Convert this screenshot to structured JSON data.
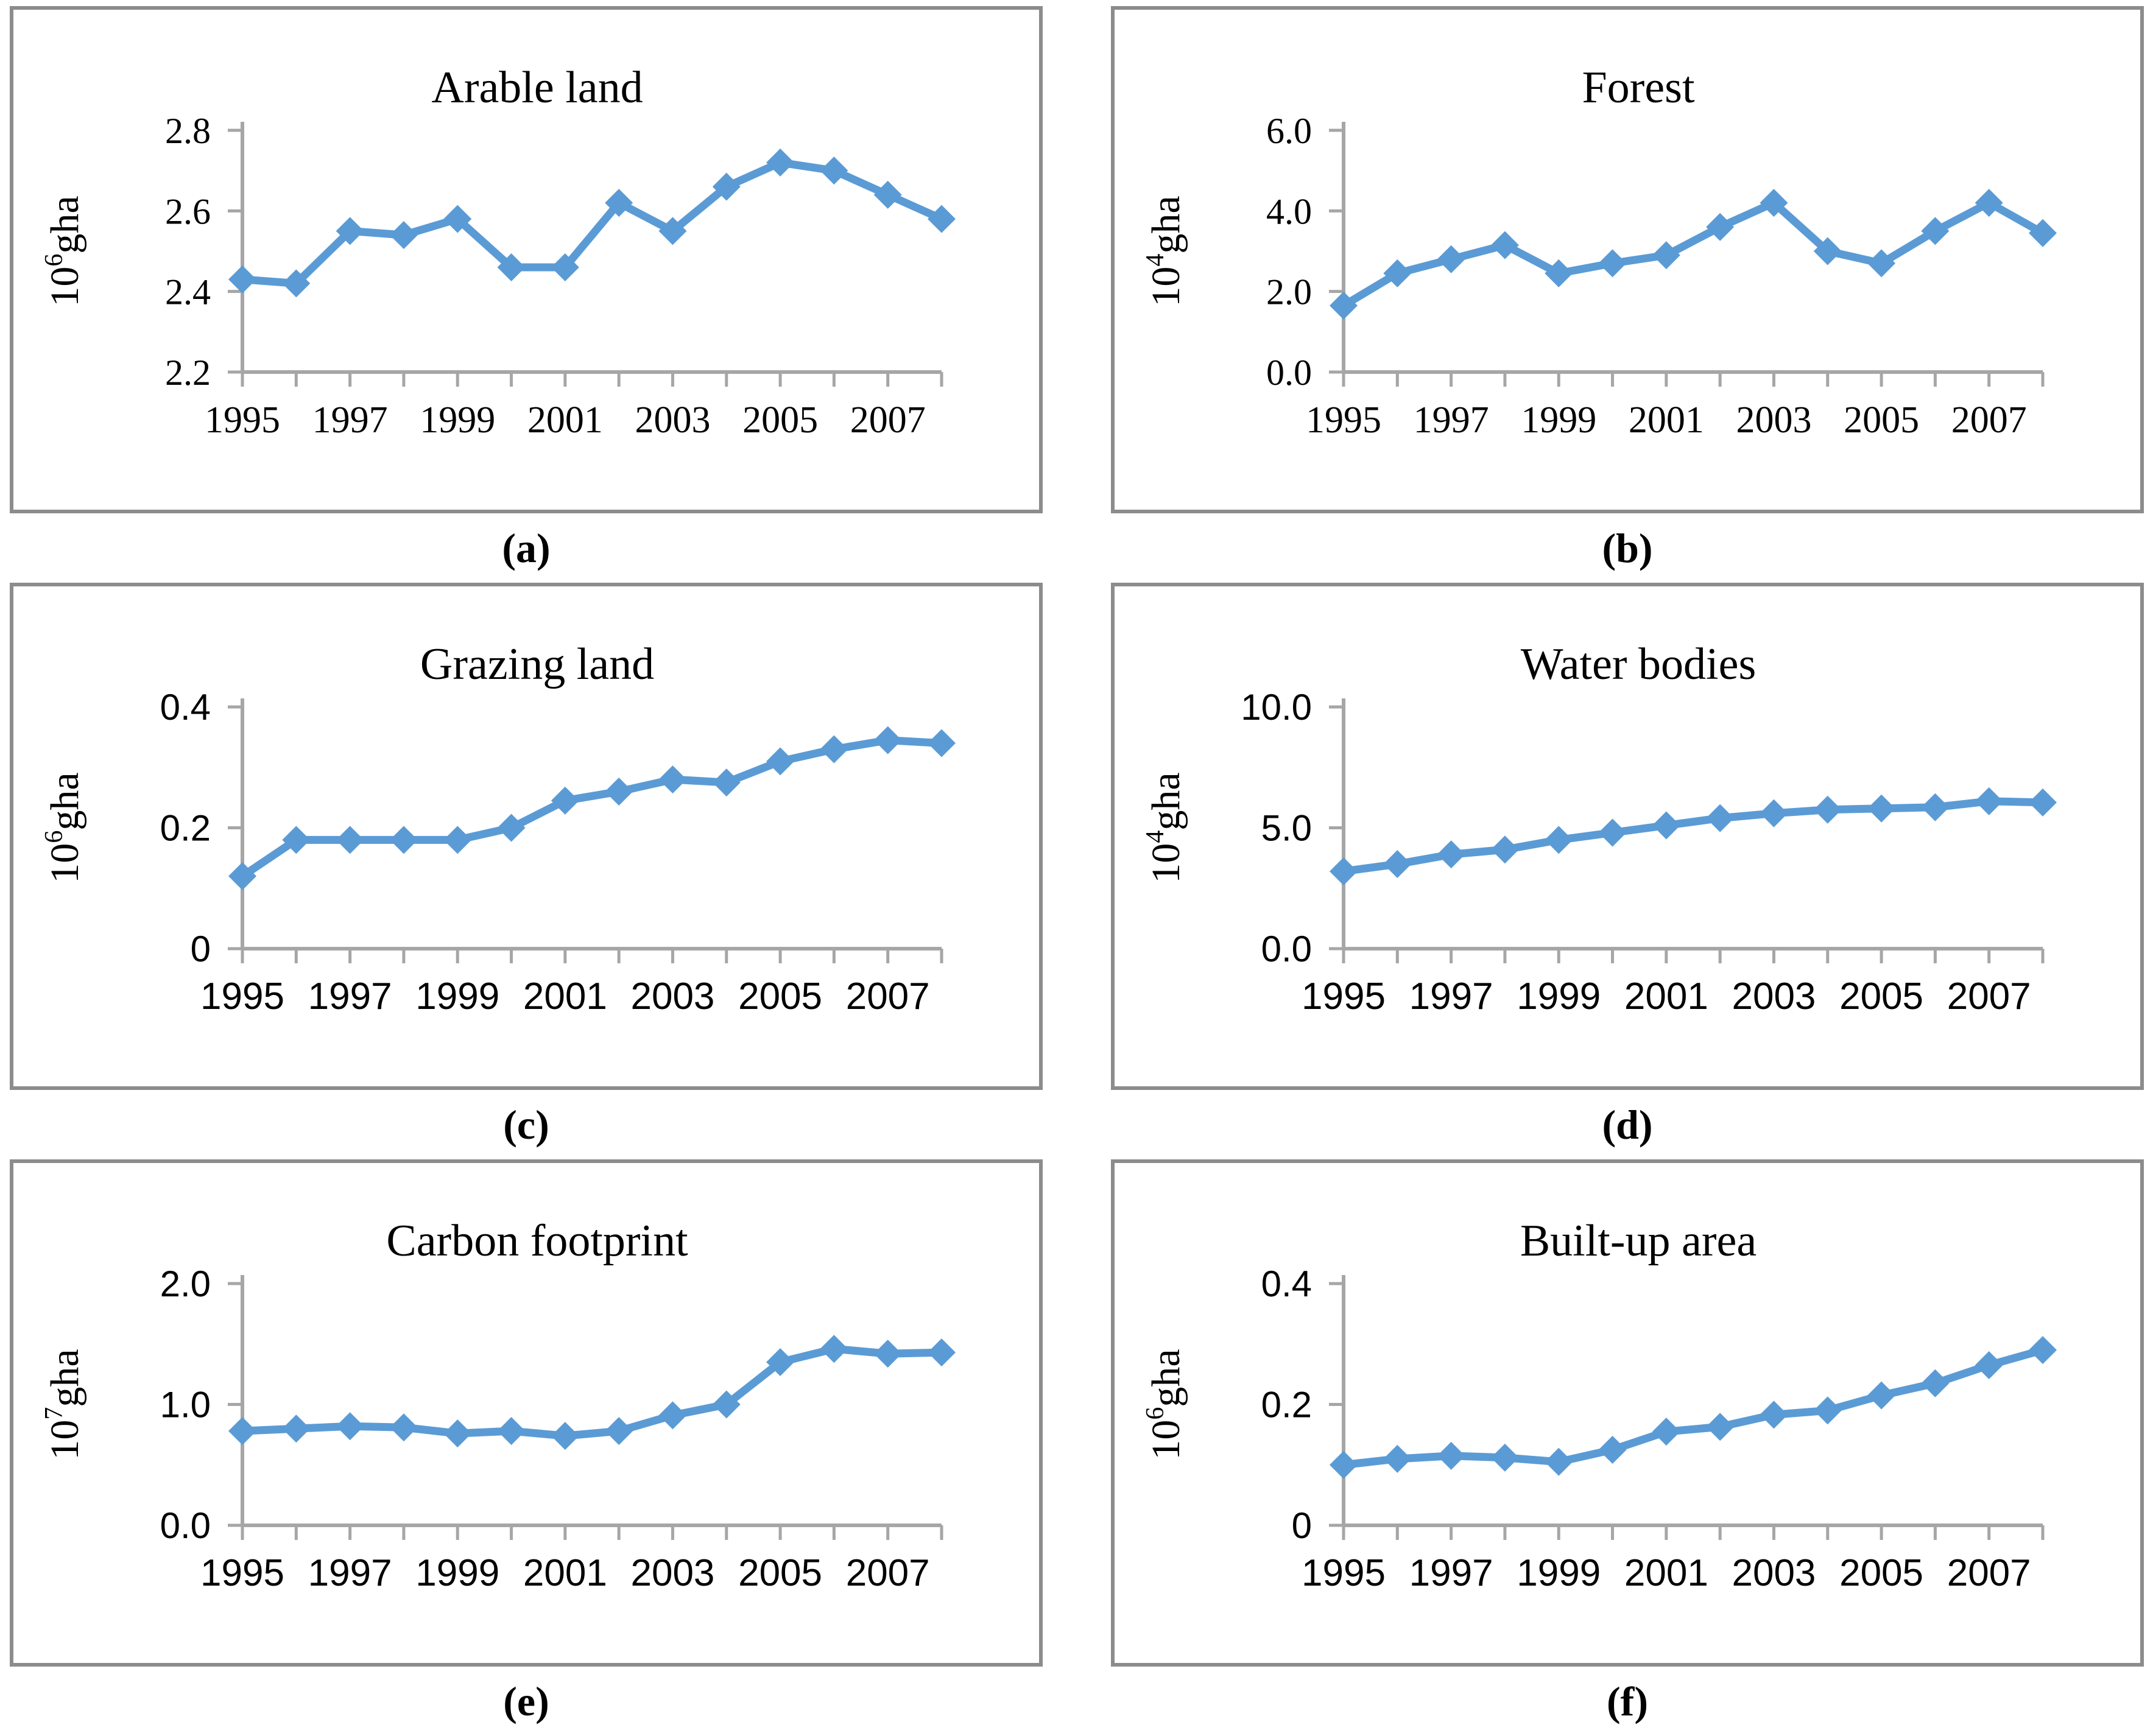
{
  "figure": {
    "line_color": "#5B9BD5",
    "axis_color": "#A6A6A6",
    "border_color": "#8C8C8C",
    "text_color": "#000000",
    "unit_suffix": "gha"
  },
  "chart_data": [
    {
      "type": "line",
      "panel": "a",
      "caption_label": "(a)",
      "title": "Arable land",
      "ylabel": {
        "base": "10",
        "exp": "6",
        "unit": "gha"
      },
      "tick_font": "serif",
      "x": [
        1995,
        1996,
        1997,
        1998,
        1999,
        2000,
        2001,
        2002,
        2003,
        2004,
        2005,
        2006,
        2007,
        2008
      ],
      "values": [
        2.43,
        2.42,
        2.55,
        2.54,
        2.58,
        2.46,
        2.46,
        2.62,
        2.55,
        2.66,
        2.72,
        2.7,
        2.64,
        2.58
      ],
      "ylim": [
        2.2,
        2.8
      ],
      "yticks": [
        {
          "v": 2.2,
          "label": "2.2"
        },
        {
          "v": 2.4,
          "label": "2.4"
        },
        {
          "v": 2.6,
          "label": "2.6"
        },
        {
          "v": 2.8,
          "label": "2.8"
        }
      ],
      "xtick_labels": [
        "1995",
        "1997",
        "1999",
        "2001",
        "2003",
        "2005",
        "2007"
      ],
      "xlabel_every": 2,
      "legend": "none",
      "grid": "off"
    },
    {
      "type": "line",
      "panel": "b",
      "caption_label": "(b)",
      "title": "Forest",
      "ylabel": {
        "base": "10",
        "exp": "4",
        "unit": "gha"
      },
      "tick_font": "serif",
      "x": [
        1995,
        1996,
        1997,
        1998,
        1999,
        2000,
        2001,
        2002,
        2003,
        2004,
        2005,
        2006,
        2007,
        2008
      ],
      "values": [
        1.65,
        2.45,
        2.8,
        3.15,
        2.45,
        2.7,
        2.9,
        3.6,
        4.2,
        3.0,
        2.7,
        3.5,
        4.2,
        3.45
      ],
      "ylim": [
        0.0,
        6.0
      ],
      "yticks": [
        {
          "v": 0.0,
          "label": "0.0"
        },
        {
          "v": 2.0,
          "label": "2.0"
        },
        {
          "v": 4.0,
          "label": "4.0"
        },
        {
          "v": 6.0,
          "label": "6.0"
        }
      ],
      "xtick_labels": [
        "1995",
        "1997",
        "1999",
        "2001",
        "2003",
        "2005",
        "2007"
      ],
      "xlabel_every": 2,
      "legend": "none",
      "grid": "off"
    },
    {
      "type": "line",
      "panel": "c",
      "caption_label": "(c)",
      "title": "Grazing land",
      "ylabel": {
        "base": "10",
        "exp": "6",
        "unit": "gha"
      },
      "tick_font": "sans",
      "x": [
        1995,
        1996,
        1997,
        1998,
        1999,
        2000,
        2001,
        2002,
        2003,
        2004,
        2005,
        2006,
        2007,
        2008
      ],
      "values": [
        0.12,
        0.18,
        0.18,
        0.18,
        0.18,
        0.2,
        0.245,
        0.26,
        0.28,
        0.275,
        0.31,
        0.33,
        0.345,
        0.34
      ],
      "ylim": [
        0.0,
        0.4
      ],
      "yticks": [
        {
          "v": 0.0,
          "label": "0"
        },
        {
          "v": 0.2,
          "label": "0.2"
        },
        {
          "v": 0.4,
          "label": "0.4"
        }
      ],
      "xtick_labels": [
        "1995",
        "1997",
        "1999",
        "2001",
        "2003",
        "2005",
        "2007"
      ],
      "xlabel_every": 2,
      "legend": "none",
      "grid": "off"
    },
    {
      "type": "line",
      "panel": "d",
      "caption_label": "(d)",
      "title": "Water bodies",
      "ylabel": {
        "base": "10",
        "exp": "4",
        "unit": "gha"
      },
      "tick_font": "sans",
      "x": [
        1995,
        1996,
        1997,
        1998,
        1999,
        2000,
        2001,
        2002,
        2003,
        2004,
        2005,
        2006,
        2007,
        2008
      ],
      "values": [
        3.2,
        3.5,
        3.9,
        4.1,
        4.5,
        4.8,
        5.1,
        5.4,
        5.6,
        5.75,
        5.8,
        5.85,
        6.1,
        6.05
      ],
      "ylim": [
        0.0,
        10.0
      ],
      "yticks": [
        {
          "v": 0.0,
          "label": "0.0"
        },
        {
          "v": 5.0,
          "label": "5.0"
        },
        {
          "v": 10.0,
          "label": "10.0"
        }
      ],
      "xtick_labels": [
        "1995",
        "1997",
        "1999",
        "2001",
        "2003",
        "2005",
        "2007"
      ],
      "xlabel_every": 2,
      "legend": "none",
      "grid": "off"
    },
    {
      "type": "line",
      "panel": "e",
      "caption_label": "(e)",
      "title": "Carbon footprint",
      "ylabel": {
        "base": "10",
        "exp": "7",
        "unit": "gha"
      },
      "tick_font": "sans",
      "x": [
        1995,
        1996,
        1997,
        1998,
        1999,
        2000,
        2001,
        2002,
        2003,
        2004,
        2005,
        2006,
        2007,
        2008
      ],
      "values": [
        0.78,
        0.8,
        0.82,
        0.81,
        0.76,
        0.78,
        0.74,
        0.78,
        0.91,
        1.0,
        1.35,
        1.46,
        1.42,
        1.43
      ],
      "ylim": [
        0.0,
        2.0
      ],
      "yticks": [
        {
          "v": 0.0,
          "label": "0.0"
        },
        {
          "v": 1.0,
          "label": "1.0"
        },
        {
          "v": 2.0,
          "label": "2.0"
        }
      ],
      "xtick_labels": [
        "1995",
        "1997",
        "1999",
        "2001",
        "2003",
        "2005",
        "2007"
      ],
      "xlabel_every": 2,
      "legend": "none",
      "grid": "off"
    },
    {
      "type": "line",
      "panel": "f",
      "caption_label": "(f)",
      "title": "Built-up area",
      "ylabel": {
        "base": "10",
        "exp": "6",
        "unit": "gha"
      },
      "tick_font": "sans",
      "x": [
        1995,
        1996,
        1997,
        1998,
        1999,
        2000,
        2001,
        2002,
        2003,
        2004,
        2005,
        2006,
        2007,
        2008
      ],
      "values": [
        0.1,
        0.11,
        0.115,
        0.112,
        0.105,
        0.125,
        0.155,
        0.163,
        0.183,
        0.19,
        0.215,
        0.235,
        0.265,
        0.29
      ],
      "ylim": [
        0.0,
        0.4
      ],
      "yticks": [
        {
          "v": 0.0,
          "label": "0"
        },
        {
          "v": 0.2,
          "label": "0.2"
        },
        {
          "v": 0.4,
          "label": "0.4"
        }
      ],
      "xtick_labels": [
        "1995",
        "1997",
        "1999",
        "2001",
        "2003",
        "2005",
        "2007"
      ],
      "xlabel_every": 2,
      "legend": "none",
      "grid": "off"
    }
  ]
}
